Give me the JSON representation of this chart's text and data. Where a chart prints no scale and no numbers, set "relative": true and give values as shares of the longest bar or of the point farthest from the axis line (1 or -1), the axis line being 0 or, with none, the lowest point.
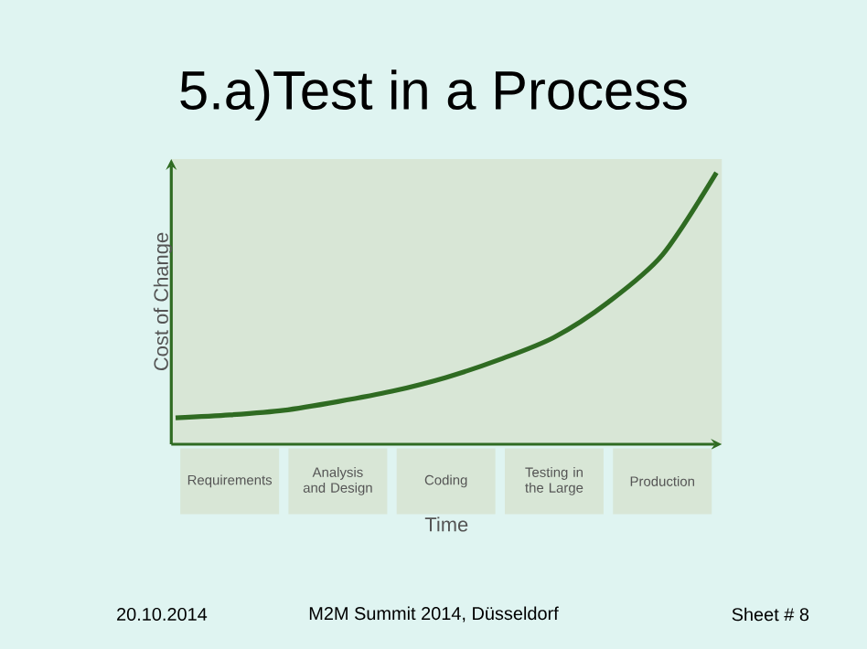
{
  "chart_data": {
    "type": "line",
    "title": "5.a)Test in a Process",
    "xlabel": "Time",
    "ylabel": "Cost of Change",
    "categories": [
      null,
      "Requirements",
      null,
      "Analysis and Design",
      null,
      "Coding",
      null,
      "Testing in the Large",
      null,
      "Production",
      null
    ],
    "series": [
      {
        "color": "#2f6b22",
        "values": [
          0.097,
          0.108,
          0.125,
          0.157,
          0.195,
          0.246,
          0.3125,
          0.394,
          0.523,
          0.697,
          1.0
        ]
      }
    ],
    "relative": true,
    "marker": "none",
    "line_style": "solid",
    "annotations": [
      "20.10.2014",
      "M2M Summit 2014, Düsseldorf",
      "Sheet # 8"
    ]
  }
}
